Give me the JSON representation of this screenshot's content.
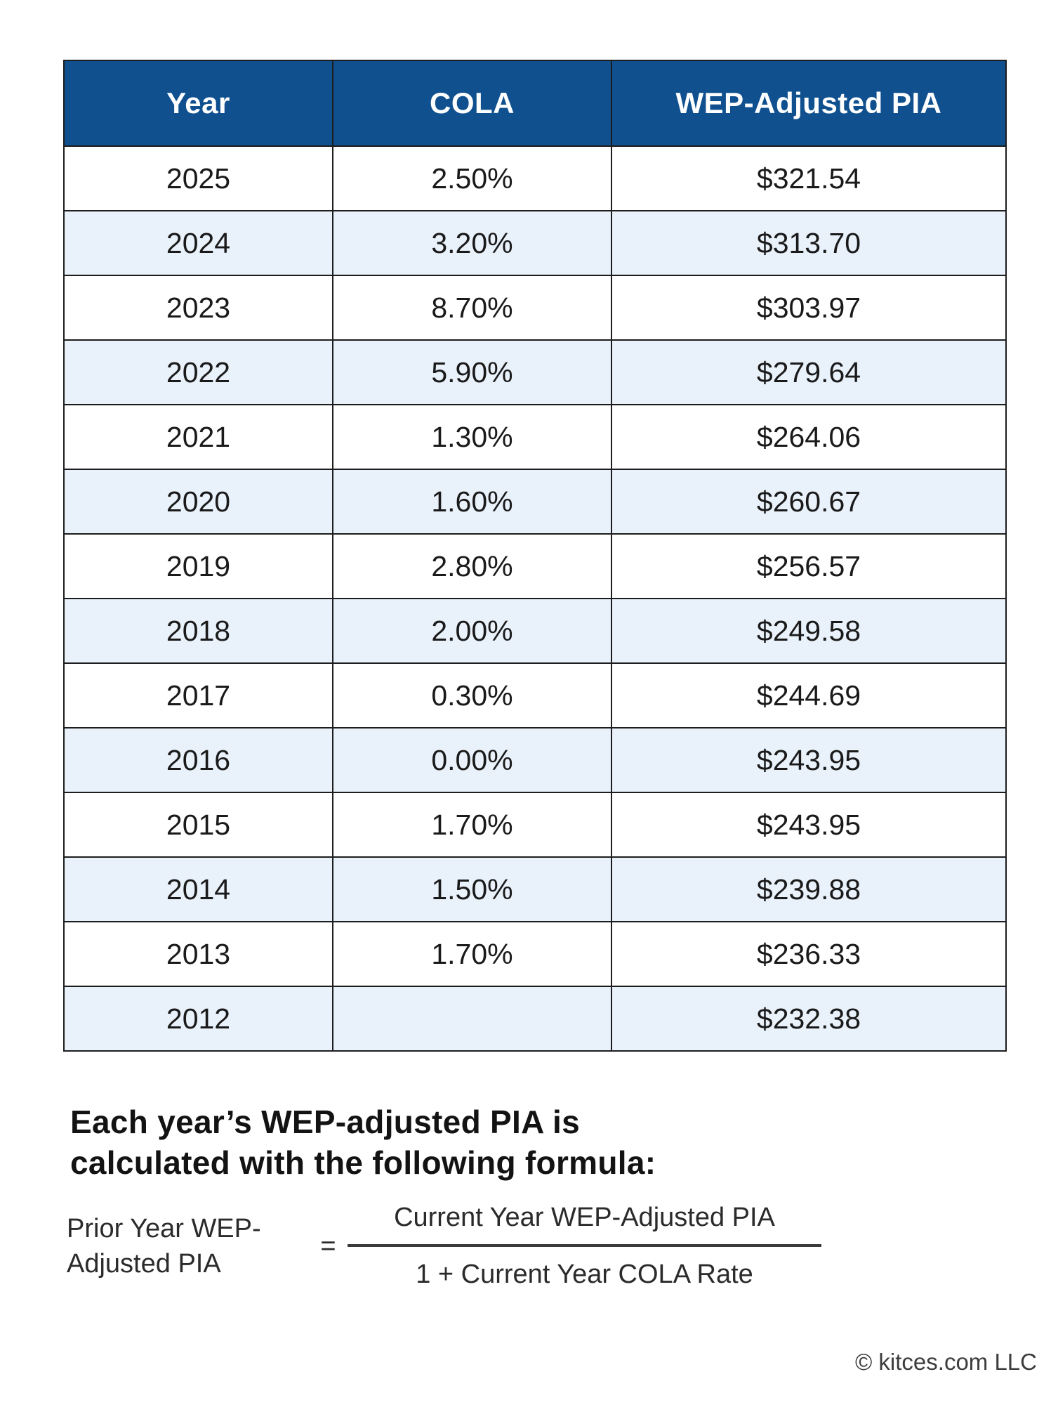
{
  "chart_data": {
    "type": "table",
    "columns": [
      "Year",
      "COLA",
      "WEP-Adjusted PIA"
    ],
    "rows": [
      {
        "year": "2025",
        "cola": "2.50%",
        "pia": "$321.54"
      },
      {
        "year": "2024",
        "cola": "3.20%",
        "pia": "$313.70"
      },
      {
        "year": "2023",
        "cola": "8.70%",
        "pia": "$303.97"
      },
      {
        "year": "2022",
        "cola": "5.90%",
        "pia": "$279.64"
      },
      {
        "year": "2021",
        "cola": "1.30%",
        "pia": "$264.06"
      },
      {
        "year": "2020",
        "cola": "1.60%",
        "pia": "$260.67"
      },
      {
        "year": "2019",
        "cola": "2.80%",
        "pia": "$256.57"
      },
      {
        "year": "2018",
        "cola": "2.00%",
        "pia": "$249.58"
      },
      {
        "year": "2017",
        "cola": "0.30%",
        "pia": "$244.69"
      },
      {
        "year": "2016",
        "cola": "0.00%",
        "pia": "$243.95"
      },
      {
        "year": "2015",
        "cola": "1.70%",
        "pia": "$243.95"
      },
      {
        "year": "2014",
        "cola": "1.50%",
        "pia": "$239.88"
      },
      {
        "year": "2013",
        "cola": "1.70%",
        "pia": "$236.33"
      },
      {
        "year": "2012",
        "cola": "",
        "pia": "$232.38"
      }
    ]
  },
  "explanation": {
    "line1": "Each year’s WEP-adjusted PIA is",
    "line2": "calculated with the following formula:"
  },
  "formula": {
    "lhs_line1": "Prior Year WEP-",
    "lhs_line2": "Adjusted PIA",
    "equals": "=",
    "numerator": "Current Year WEP-Adjusted PIA",
    "denominator": "1 + Current Year COLA Rate"
  },
  "footer": {
    "copyright": "© kitces.com LLC"
  },
  "colors": {
    "header_bg": "#10508f",
    "header_text": "#ffffff",
    "row_alt_bg": "#e9f1fa",
    "border": "#1d1d1d",
    "text": "#1a1a1a",
    "heading": "#131313",
    "formula_text": "#2b2b2b",
    "fraction_line": "#3a3a3a",
    "footer_text": "#3d3d3d"
  }
}
